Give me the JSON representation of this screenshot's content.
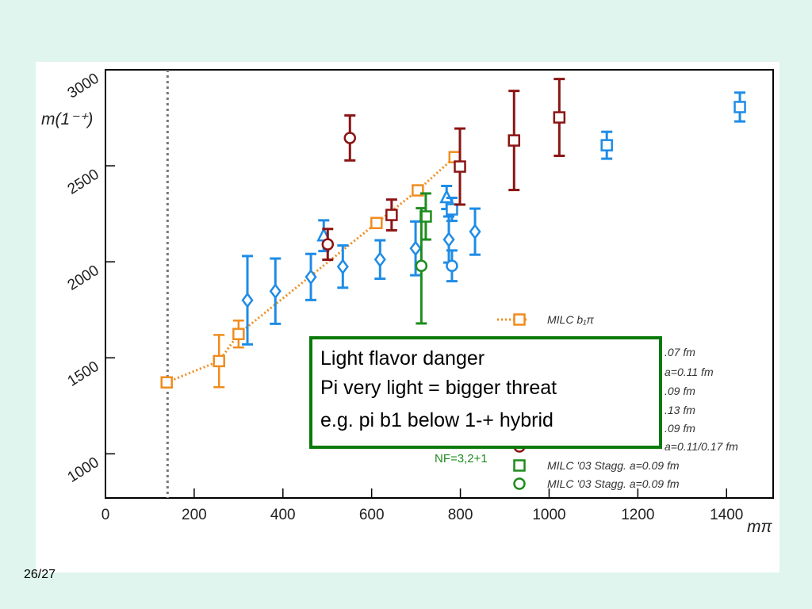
{
  "chart_data": {
    "type": "scatter",
    "y_label": "m(1⁻⁺)",
    "x_label": "mπ",
    "xlim": [
      0,
      1505
    ],
    "ylim": [
      770,
      3000
    ],
    "xticks": [
      0,
      200,
      400,
      600,
      800,
      1000,
      1200,
      1400
    ],
    "yticks": [
      1000,
      1500,
      2000,
      2500,
      3000
    ],
    "vline": 140,
    "legend_group_label": "NF=3,2+1",
    "series": [
      {
        "name": "MILC b₁π",
        "color": "#f08c1e",
        "marker": "square",
        "connected": true,
        "x": [
          138,
          256,
          300,
          611,
          704,
          787
        ],
        "values": [
          1372,
          1483,
          1624,
          2202,
          2372,
          2545
        ],
        "errors": [
          15,
          136,
          70,
          15,
          20,
          25
        ]
      },
      {
        "name": ".07 fm",
        "color": "#1e8ce6",
        "marker": "diamond",
        "x": [
          320,
          383,
          463,
          535,
          619,
          699,
          774,
          833
        ],
        "values": [
          1800,
          1847,
          1921,
          1975,
          2012,
          2070,
          2116,
          2157
        ],
        "errors": [
          230,
          170,
          120,
          110,
          100,
          140,
          120,
          120
        ]
      },
      {
        "name": "a=0.11 fm",
        "color": "#1e8ce6",
        "marker": "triangle",
        "x": [
          492,
          769
        ],
        "values": [
          2136,
          2335
        ],
        "errors": [
          80,
          60
        ]
      },
      {
        "name": ".09 fm",
        "color": "#1e8ce6",
        "marker": "circle",
        "x": [
          781
        ],
        "values": [
          1979
        ],
        "errors": [
          80
        ]
      },
      {
        "name": ".13 fm",
        "color": "#1e8ce6",
        "marker": "square",
        "x": [
          781,
          1130,
          1430
        ],
        "values": [
          2273,
          2607,
          2806
        ],
        "errors": [
          60,
          70,
          75
        ]
      },
      {
        "name": ".09 fm",
        "color": "#8b1414",
        "marker": "square",
        "x": [
          645,
          799,
          921,
          1023
        ],
        "values": [
          2244,
          2496,
          2632,
          2752
        ],
        "errors": [
          80,
          198,
          258,
          200
        ]
      },
      {
        "name": "a=0.11/0.17 fm",
        "color": "#8b1414",
        "marker": "circle",
        "x": [
          501,
          551
        ],
        "values": [
          2091,
          2645
        ],
        "errors": [
          80,
          117
        ]
      },
      {
        "name": "MILC '03 Stagg. a=0.09 fm",
        "color": "#1e8c1e",
        "marker": "square",
        "x": [
          722
        ],
        "values": [
          2236
        ],
        "errors": [
          120
        ]
      },
      {
        "name": "MILC '03 Stagg. a=0.09 fm",
        "color": "#1e8c1e",
        "marker": "circle",
        "x": [
          712
        ],
        "values": [
          1979
        ],
        "errors": [
          300
        ]
      }
    ]
  },
  "overlay": {
    "lines": [
      "Light flavor danger",
      "Pi very light = bigger threat",
      "e.g. pi b1 below 1-+ hybrid"
    ]
  },
  "page_number": "26/27"
}
